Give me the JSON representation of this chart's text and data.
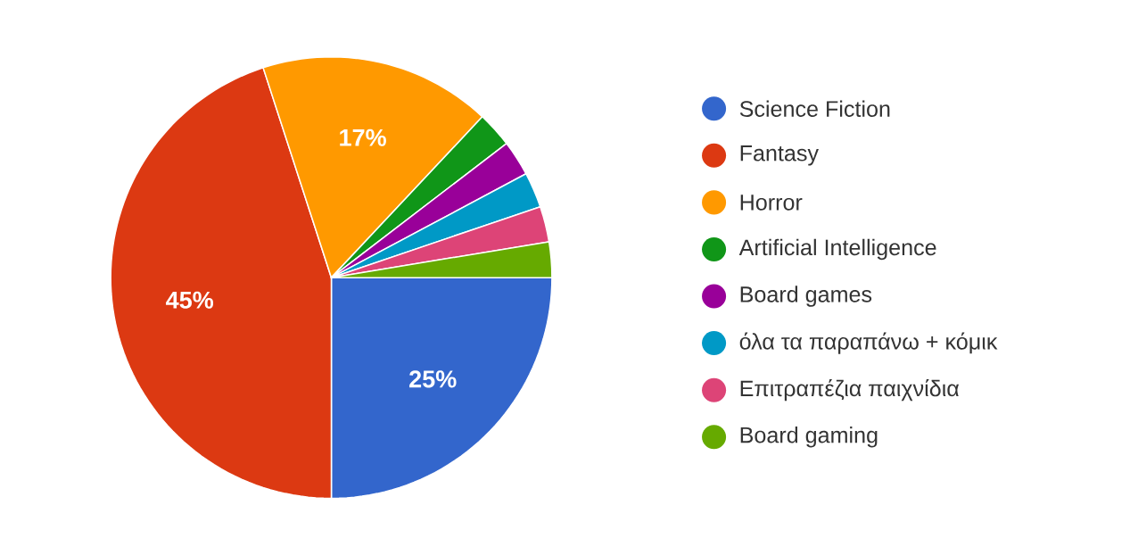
{
  "chart_data": {
    "type": "pie",
    "categories": [
      "Science Fiction",
      "Fantasy",
      "Horror",
      "Artificial Intelligence",
      "Board games",
      "όλα τα παραπάνω + κόμικ",
      "Επιτραπέζια παιχνίδια",
      "Board gaming"
    ],
    "values": [
      25,
      45,
      17,
      2.6,
      2.6,
      2.6,
      2.6,
      2.6
    ],
    "value_labels": [
      "25%",
      "45%",
      "17%",
      null,
      null,
      null,
      null,
      null
    ],
    "colors": [
      "#3366cc",
      "#dc3912",
      "#ff9900",
      "#109618",
      "#990099",
      "#0099c6",
      "#dd4477",
      "#66aa00"
    ],
    "legend": "right"
  }
}
